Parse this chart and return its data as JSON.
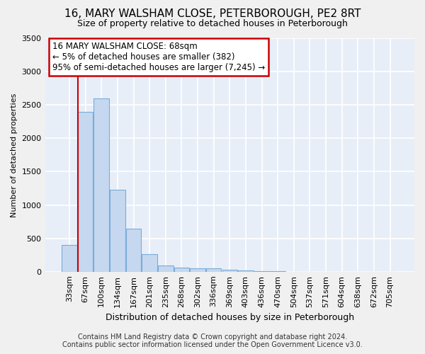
{
  "title": "16, MARY WALSHAM CLOSE, PETERBOROUGH, PE2 8RT",
  "subtitle": "Size of property relative to detached houses in Peterborough",
  "xlabel": "Distribution of detached houses by size in Peterborough",
  "ylabel": "Number of detached properties",
  "footer_line1": "Contains HM Land Registry data © Crown copyright and database right 2024.",
  "footer_line2": "Contains public sector information licensed under the Open Government Licence v3.0.",
  "categories": [
    "33sqm",
    "67sqm",
    "100sqm",
    "134sqm",
    "167sqm",
    "201sqm",
    "235sqm",
    "268sqm",
    "302sqm",
    "336sqm",
    "369sqm",
    "403sqm",
    "436sqm",
    "470sqm",
    "504sqm",
    "537sqm",
    "571sqm",
    "604sqm",
    "638sqm",
    "672sqm",
    "705sqm"
  ],
  "values": [
    400,
    2400,
    2600,
    1230,
    640,
    260,
    90,
    62,
    55,
    50,
    28,
    22,
    8,
    4,
    2,
    1,
    1,
    1,
    0,
    0,
    0
  ],
  "bar_color": "#c5d8f0",
  "bar_edge_color": "#7aabda",
  "background_color": "#e8eef8",
  "grid_color": "#ffffff",
  "annotation_line1": "16 MARY WALSHAM CLOSE: 68sqm",
  "annotation_line2": "← 5% of detached houses are smaller (382)",
  "annotation_line3": "95% of semi-detached houses are larger (7,245) →",
  "annotation_box_color": "#ffffff",
  "annotation_box_edge": "#cc0000",
  "vline_color": "#cc0000",
  "vline_x": 0.55,
  "ylim": [
    0,
    3500
  ],
  "yticks": [
    0,
    500,
    1000,
    1500,
    2000,
    2500,
    3000,
    3500
  ],
  "title_fontsize": 11,
  "subtitle_fontsize": 9,
  "ylabel_fontsize": 8,
  "xlabel_fontsize": 9,
  "tick_fontsize": 8,
  "annot_fontsize": 8.5,
  "footer_fontsize": 7
}
